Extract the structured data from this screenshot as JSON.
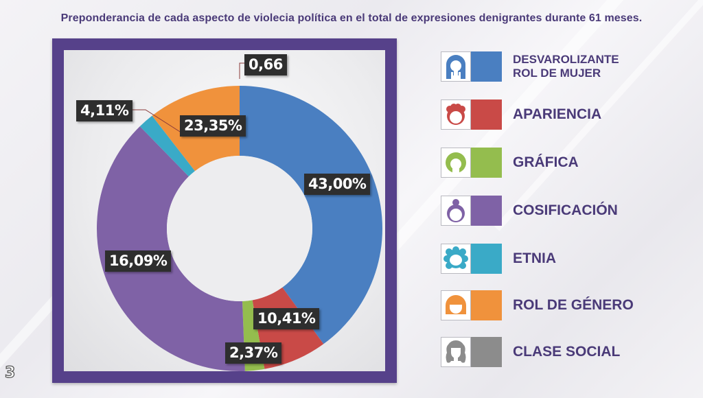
{
  "title": "Preponderancia de cada aspecto de  violecia política en el total de expresiones denigrantes durante 61 meses.",
  "page_number": "3",
  "colors": {
    "frame": "#56418a",
    "title_text": "#4a3a78",
    "label_bg": "#2e2e2e",
    "label_text": "#ffffff"
  },
  "chart_data": {
    "type": "pie",
    "variant": "donut",
    "title": "Preponderancia de cada aspecto de  violecia política en el total de expresiones denigrantes durante 61 meses.",
    "legend_position": "right",
    "start": "12 o'clock, clockwise",
    "slices": [
      {
        "name": "DESVAROLIZANTE ROL DE MUJER",
        "label": "43,00%",
        "value": 43.0,
        "visual_share": 40.0,
        "color": "#4a7fc1"
      },
      {
        "name": "APARIENCIA",
        "label": "10,41%",
        "value": 10.41,
        "visual_share": 7.2,
        "color": "#c94a47"
      },
      {
        "name": "GRÁFICA",
        "label": "2,37%",
        "value": 2.37,
        "visual_share": 2.2,
        "color": "#94bd4e"
      },
      {
        "name": "COSIFICACIÓN",
        "label": "16,09%",
        "value": 16.09,
        "visual_share": 38.3,
        "color": "#7f62a6"
      },
      {
        "name": "ETNIA",
        "label": "4,11%",
        "value": 4.11,
        "visual_share": 1.8,
        "color": "#3aaac7"
      },
      {
        "name": "ROL DE GÉNERO",
        "label": "23,35%",
        "value": 23.35,
        "visual_share": 10.5,
        "color": "#f0923c"
      },
      {
        "name": "CLASE SOCIAL",
        "label": "0,66",
        "value": 0.66,
        "visual_share": 0.0,
        "color": "#8c8c8c"
      }
    ]
  },
  "legend": [
    {
      "label": "DESVAROLIZANTE ROL DE MUJER",
      "line1": "DESVAROLIZANTE",
      "line2": "ROL DE MUJER",
      "color": "#4a7fc1",
      "icon": "woman-long-hair-icon"
    },
    {
      "label": "APARIENCIA",
      "color": "#c94a47",
      "icon": "woman-curly-hair-icon"
    },
    {
      "label": "GRÁFICA",
      "color": "#94bd4e",
      "icon": "woman-short-hair-icon"
    },
    {
      "label": "COSIFICACIÓN",
      "color": "#7f62a6",
      "icon": "woman-bun-hair-icon"
    },
    {
      "label": "ETNIA",
      "color": "#3aaac7",
      "icon": "woman-afro-hair-icon"
    },
    {
      "label": "ROL DE GÉNERO",
      "color": "#f0923c",
      "icon": "woman-bob-hair-icon"
    },
    {
      "label": "CLASE SOCIAL",
      "color": "#8c8c8c",
      "icon": "woman-wavy-hair-icon"
    }
  ]
}
